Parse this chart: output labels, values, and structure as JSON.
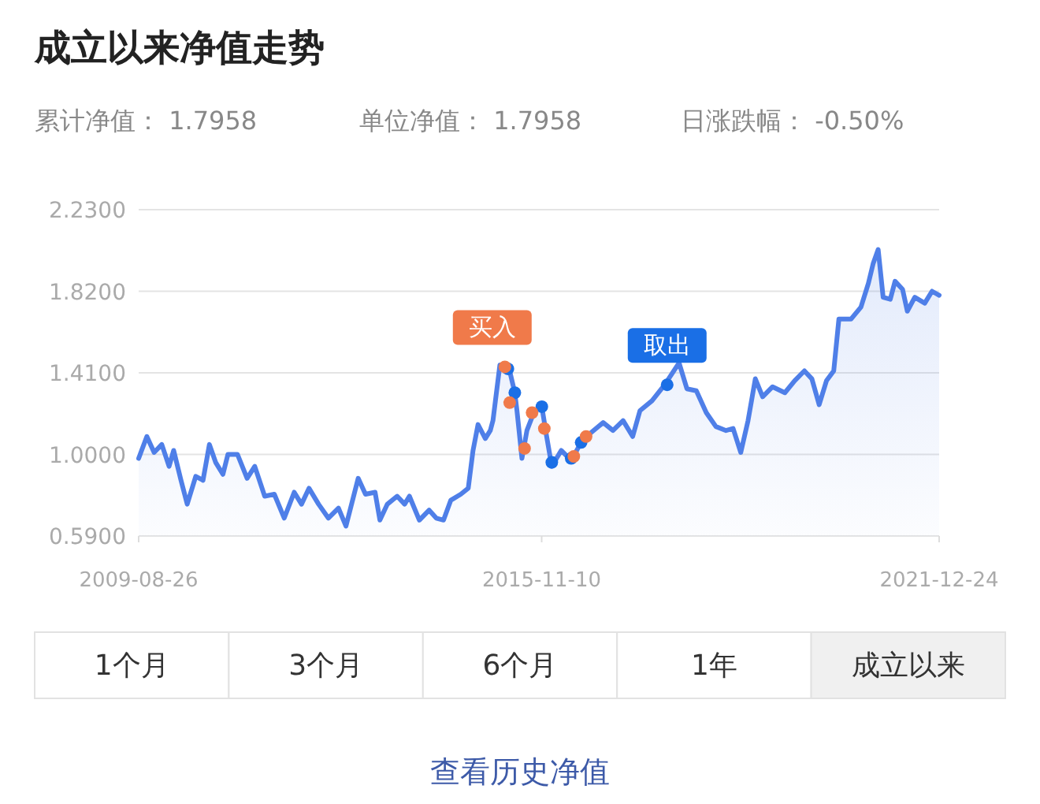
{
  "chart_data": {
    "type": "area",
    "title": "成立以来净值走势",
    "annotations": [
      "累计净值： 1.7958",
      "单位净值： 1.7958",
      "日涨跌幅： -0.50%",
      "1个月",
      "3个月",
      "6个月",
      "1年",
      "成立以来",
      "查看历史净值"
    ],
    "x": [
      "2009-08-26",
      "2009-10-11",
      "2009-11-21",
      "2010-01-03",
      "2010-02-13",
      "2010-03-11",
      "2010-04-21",
      "2010-05-26",
      "2010-07-13",
      "2010-08-23",
      "2010-09-28",
      "2010-11-02",
      "2010-12-13",
      "2011-01-10",
      "2011-03-05",
      "2011-04-28",
      "2011-06-10",
      "2011-08-05",
      "2011-09-28",
      "2011-11-23",
      "2012-01-18",
      "2012-02-28",
      "2012-04-10",
      "2012-06-03",
      "2012-07-28",
      "2012-09-23",
      "2012-11-04",
      "2013-01-12",
      "2013-02-22",
      "2013-04-17",
      "2013-05-14",
      "2013-06-25",
      "2013-08-19",
      "2013-09-30",
      "2013-10-27",
      "2013-12-22",
      "2014-02-15",
      "2014-03-27",
      "2014-05-07",
      "2014-06-17",
      "2014-08-12",
      "2014-09-23",
      "2014-10-20",
      "2014-11-17",
      "2014-12-28",
      "2015-01-25",
      "2015-02-09",
      "2015-03-20",
      "2015-05-14",
      "2015-06-12",
      "2015-06-24",
      "2015-07-22",
      "2015-08-19",
      "2015-10-01",
      "2015-11-11",
      "2015-12-08",
      "2016-01-06",
      "2016-02-28",
      "2016-04-24",
      "2016-06-19",
      "2016-08-01",
      "2016-10-21",
      "2016-12-15",
      "2017-02-10",
      "2017-04-05",
      "2017-05-16",
      "2017-07-23",
      "2017-10-02",
      "2017-12-22",
      "2018-02-04",
      "2018-03-29",
      "2018-05-24",
      "2018-07-17",
      "2018-09-12",
      "2018-10-22",
      "2018-12-04",
      "2019-01-14",
      "2019-02-24",
      "2019-04-06",
      "2019-06-01",
      "2019-08-09",
      "2019-10-03",
      "2019-11-27",
      "2020-01-08",
      "2020-02-18",
      "2020-03-30",
      "2020-05-10",
      "2020-06-08",
      "2020-08-15",
      "2020-10-10",
      "2020-11-21",
      "2020-12-18",
      "2021-01-15",
      "2021-02-12",
      "2021-03-24",
      "2021-04-20",
      "2021-06-01",
      "2021-06-28",
      "2021-08-09",
      "2021-10-04",
      "2021-11-14",
      "2021-12-24"
    ],
    "series": [
      {
        "type": "area",
        "color": "#4f7fe8",
        "values": [
          0.98,
          1.09,
          1.01,
          1.05,
          0.94,
          1.02,
          0.87,
          0.75,
          0.89,
          0.87,
          1.05,
          0.96,
          0.9,
          1.0,
          1.0,
          0.88,
          0.94,
          0.79,
          0.8,
          0.68,
          0.81,
          0.75,
          0.83,
          0.75,
          0.68,
          0.73,
          0.64,
          0.88,
          0.8,
          0.81,
          0.67,
          0.75,
          0.79,
          0.75,
          0.79,
          0.67,
          0.72,
          0.68,
          0.67,
          0.77,
          0.8,
          0.83,
          1.02,
          1.15,
          1.08,
          1.12,
          1.17,
          1.45,
          1.42,
          1.31,
          1.22,
          0.98,
          1.12,
          1.22,
          1.24,
          1.09,
          0.94,
          1.02,
          0.97,
          1.06,
          1.1,
          1.16,
          1.12,
          1.17,
          1.09,
          1.22,
          1.27,
          1.35,
          1.46,
          1.33,
          1.32,
          1.21,
          1.14,
          1.12,
          1.13,
          1.01,
          1.17,
          1.38,
          1.29,
          1.34,
          1.31,
          1.37,
          1.42,
          1.38,
          1.25,
          1.37,
          1.42,
          1.68,
          1.68,
          1.74,
          1.86,
          1.96,
          2.03,
          1.79,
          1.78,
          1.87,
          1.83,
          1.72,
          1.79,
          1.76,
          1.82,
          1.8
        ]
      },
      {
        "type": "scatter",
        "name": "买入",
        "color": "#f07a4a",
        "marker": "circle",
        "x": [
          "2015-04-17",
          "2015-05-14",
          "2015-08-06",
          "2015-09-17",
          "2015-11-25",
          "2016-05-09",
          "2016-07-17"
        ],
        "values": [
          1.44,
          1.26,
          1.03,
          1.21,
          1.13,
          0.99,
          1.09
        ]
      },
      {
        "type": "scatter",
        "name": "取出",
        "color": "#1a6fe6",
        "marker": "circle",
        "x": [
          "2015-05-04",
          "2015-06-12",
          "2015-11-11",
          "2016-01-06",
          "2016-04-24",
          "2016-06-19",
          "2017-10-16"
        ],
        "values": [
          1.43,
          1.31,
          1.24,
          0.96,
          0.98,
          1.06,
          1.35
        ]
      }
    ],
    "xlim": [
      "2009-08-26",
      "2021-12-24"
    ],
    "xticks": [
      "2009-08-26",
      "2015-11-10",
      "2021-12-24"
    ],
    "ylim": [
      0.59,
      2.23
    ],
    "yticks": [
      {
        "value": 0.59,
        "label": "0.5900"
      },
      {
        "value": 1.0,
        "label": "1.0000"
      },
      {
        "value": 1.41,
        "label": "1.4100"
      },
      {
        "value": 1.82,
        "label": "1.8200"
      },
      {
        "value": 2.23,
        "label": "2.2300"
      }
    ],
    "grid": "y"
  }
}
